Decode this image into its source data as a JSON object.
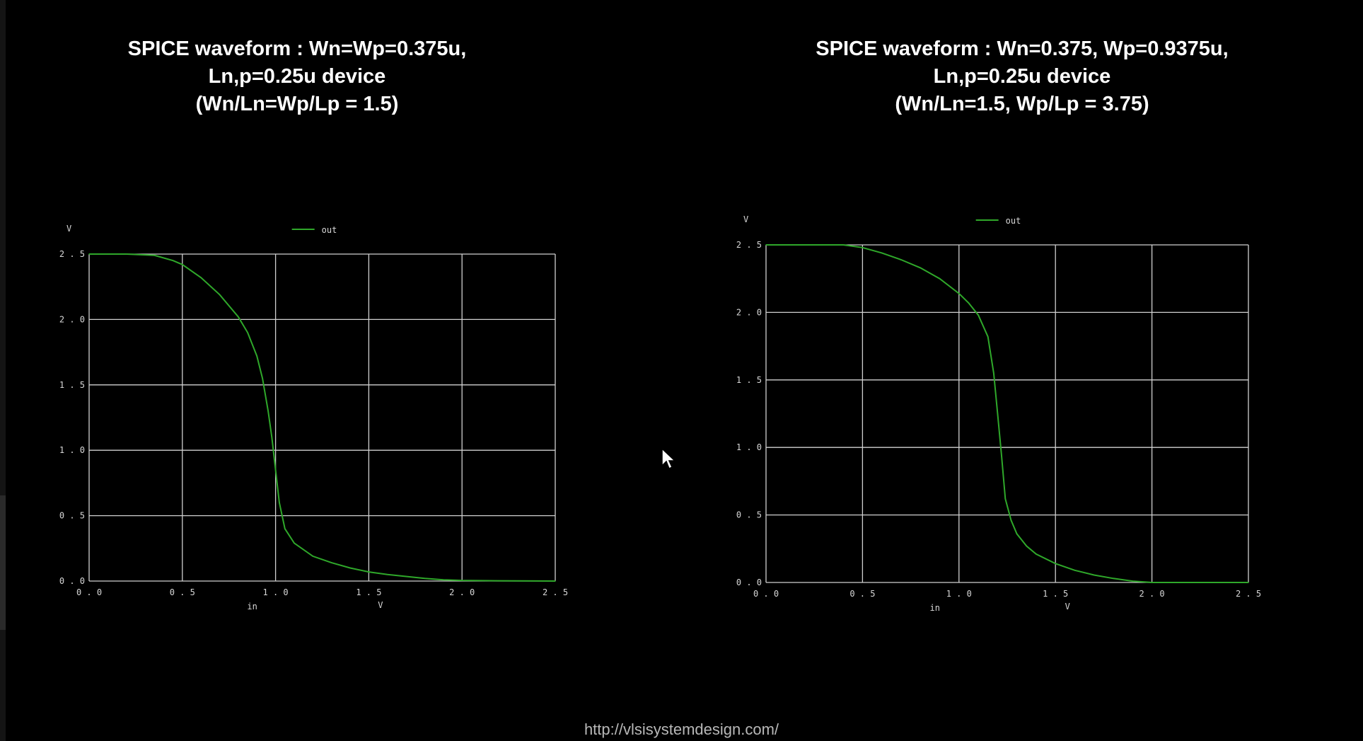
{
  "titles": {
    "left": {
      "line1": "SPICE waveform : Wn=Wp=0.375u,",
      "line2": "Ln,p=0.25u device",
      "line3": "(Wn/Ln=Wp/Lp = 1.5)"
    },
    "right": {
      "line1": "SPICE waveform : Wn=0.375, Wp=0.9375u,",
      "line2": "Ln,p=0.25u device",
      "line3": "(Wn/Ln=1.5, Wp/Lp = 3.75)"
    }
  },
  "footer": {
    "url": "http://vlsisystemdesign.com/"
  },
  "colors": {
    "background": "#000000",
    "grid": "#d0d0d0",
    "trace": "#2fa82a",
    "text": "#ffffff"
  },
  "chart_data": [
    {
      "type": "line",
      "title": "",
      "ylabel": "V",
      "xlabel": "in",
      "xunit": "V",
      "xlim": [
        0,
        2.5
      ],
      "ylim": [
        0,
        2.5
      ],
      "xticks": [
        "0.0",
        "0.5",
        "1.0",
        "1.5",
        "2.0",
        "2.5"
      ],
      "yticks": [
        "0.0",
        "0.5",
        "1.0",
        "1.5",
        "2.0",
        "2.5"
      ],
      "grid": true,
      "legend": "top-center",
      "series": [
        {
          "name": "out",
          "x": [
            0.0,
            0.2,
            0.35,
            0.45,
            0.5,
            0.6,
            0.7,
            0.8,
            0.85,
            0.9,
            0.93,
            0.96,
            0.98,
            1.0,
            1.02,
            1.05,
            1.1,
            1.2,
            1.3,
            1.4,
            1.5,
            1.6,
            1.7,
            1.8,
            1.9,
            2.0,
            2.2,
            2.5
          ],
          "y": [
            2.5,
            2.5,
            2.49,
            2.45,
            2.42,
            2.32,
            2.19,
            2.02,
            1.9,
            1.72,
            1.55,
            1.3,
            1.1,
            0.85,
            0.6,
            0.4,
            0.29,
            0.19,
            0.14,
            0.1,
            0.07,
            0.05,
            0.035,
            0.02,
            0.01,
            0.005,
            0.002,
            0.0
          ]
        }
      ]
    },
    {
      "type": "line",
      "title": "",
      "ylabel": "V",
      "xlabel": "in",
      "xunit": "V",
      "xlim": [
        0,
        2.5
      ],
      "ylim": [
        0,
        2.5
      ],
      "xticks": [
        "0.0",
        "0.5",
        "1.0",
        "1.5",
        "2.0",
        "2.5"
      ],
      "yticks": [
        "0.0",
        "0.5",
        "1.0",
        "1.5",
        "2.0",
        "2.5"
      ],
      "grid": true,
      "legend": "top-center",
      "series": [
        {
          "name": "out",
          "x": [
            0.0,
            0.3,
            0.4,
            0.5,
            0.6,
            0.7,
            0.8,
            0.9,
            1.0,
            1.05,
            1.1,
            1.15,
            1.18,
            1.2,
            1.22,
            1.24,
            1.27,
            1.3,
            1.35,
            1.4,
            1.5,
            1.6,
            1.7,
            1.8,
            1.9,
            2.0,
            2.2,
            2.5
          ],
          "y": [
            2.5,
            2.5,
            2.5,
            2.48,
            2.44,
            2.39,
            2.33,
            2.25,
            2.14,
            2.07,
            1.98,
            1.82,
            1.55,
            1.25,
            0.95,
            0.62,
            0.46,
            0.36,
            0.27,
            0.21,
            0.14,
            0.09,
            0.055,
            0.03,
            0.01,
            0.0,
            0.0,
            0.0
          ]
        }
      ]
    }
  ]
}
